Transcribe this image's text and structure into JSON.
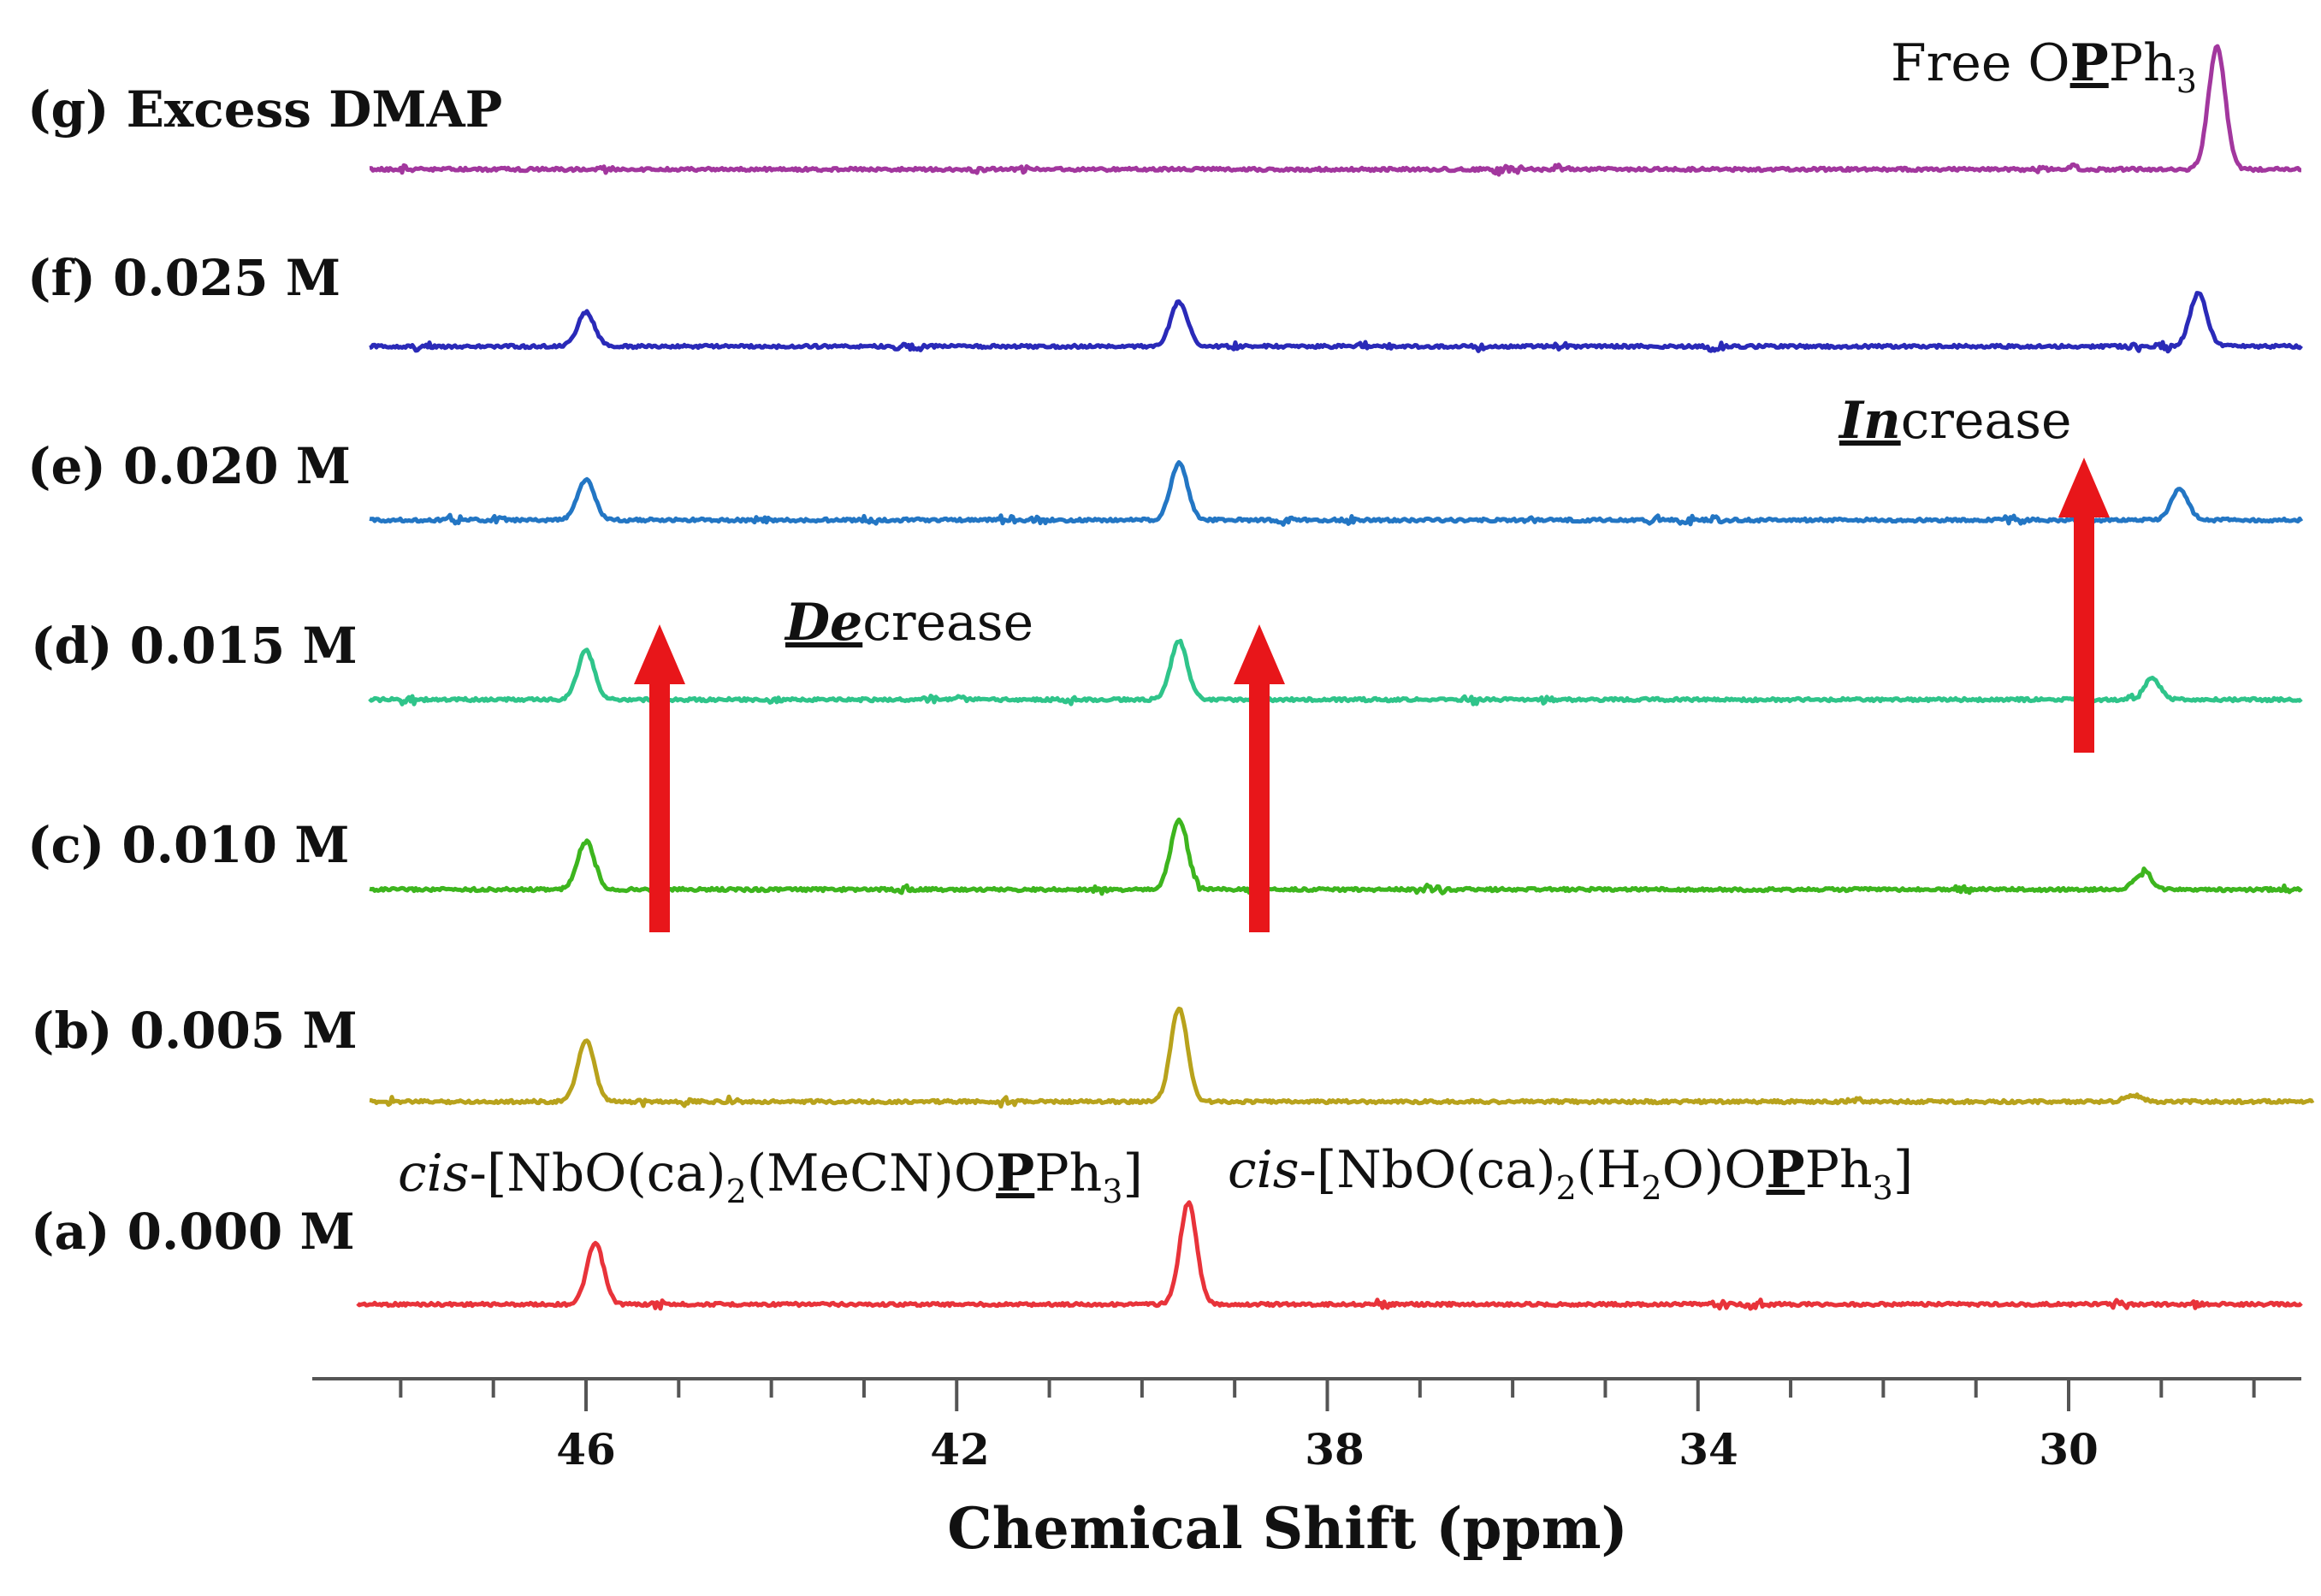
{
  "chart_data": {
    "type": "line",
    "title": "",
    "xlabel": "Chemical Shift (ppm)",
    "ylabel": "",
    "x_reversed": true,
    "xlim": [
      49.5,
      27.5
    ],
    "xticks": [
      {
        "value": 46,
        "label": "46"
      },
      {
        "value": 42,
        "label": "42"
      },
      {
        "value": 38,
        "label": "38"
      },
      {
        "value": 34,
        "label": "34"
      },
      {
        "value": 30,
        "label": "30"
      }
    ],
    "minor_tick_step": 1,
    "series": [
      {
        "name": "(a) 0.000 M",
        "color": "#e8333a",
        "peaks": [
          {
            "ppm": 45.9,
            "height": 0.75
          },
          {
            "ppm": 39.5,
            "height": 1.25
          }
        ]
      },
      {
        "name": "(b) 0.005 M",
        "color": "#b8a21c",
        "peaks": [
          {
            "ppm": 46.0,
            "height": 0.75
          },
          {
            "ppm": 39.6,
            "height": 1.15
          },
          {
            "ppm": 29.3,
            "height": 0.08
          }
        ]
      },
      {
        "name": "(c) 0.010 M",
        "color": "#3db51e",
        "peaks": [
          {
            "ppm": 46.0,
            "height": 0.6
          },
          {
            "ppm": 39.6,
            "height": 0.85
          },
          {
            "ppm": 29.2,
            "height": 0.2
          }
        ]
      },
      {
        "name": "(d) 0.015 M",
        "color": "#2fc48a",
        "peaks": [
          {
            "ppm": 46.0,
            "height": 0.6
          },
          {
            "ppm": 39.6,
            "height": 0.72
          },
          {
            "ppm": 29.1,
            "height": 0.25
          }
        ]
      },
      {
        "name": "(e) 0.020 M",
        "color": "#2376c4",
        "peaks": [
          {
            "ppm": 46.0,
            "height": 0.5
          },
          {
            "ppm": 39.6,
            "height": 0.7
          },
          {
            "ppm": 28.8,
            "height": 0.38
          }
        ]
      },
      {
        "name": "(f) 0.025 M",
        "color": "#2a2ab8",
        "peaks": [
          {
            "ppm": 46.0,
            "height": 0.42
          },
          {
            "ppm": 39.6,
            "height": 0.55
          },
          {
            "ppm": 28.6,
            "height": 0.65
          }
        ]
      },
      {
        "name": "(g) Excess DMAP",
        "color": "#a2379e",
        "peaks": [
          {
            "ppm": 28.4,
            "height": 1.5
          }
        ]
      }
    ],
    "annotations": {
      "free_ligand": {
        "text": "Free O",
        "bold": "P",
        "tail": "Ph",
        "sub": "3"
      },
      "complex_a": {
        "italic": "cis",
        "text": "-[NbO(ca)",
        "sub1": "2",
        "mid": "(MeCN)O",
        "bold": "P",
        "tail": "Ph",
        "sub2": "3",
        "end": "]"
      },
      "complex_b": {
        "italic": "cis",
        "text": "-[NbO(ca)",
        "sub1": "2",
        "mid": "(H",
        "sub2": "2",
        "mid2": "O)O",
        "bold": "P",
        "tail": "Ph",
        "sub3": "3",
        "end": "]"
      },
      "decrease": {
        "emph": "De",
        "rest": "crease"
      },
      "increase": {
        "emph": "In",
        "rest": "crease"
      }
    },
    "arrow_color": "#e8161a",
    "axis_color": "#555555"
  }
}
